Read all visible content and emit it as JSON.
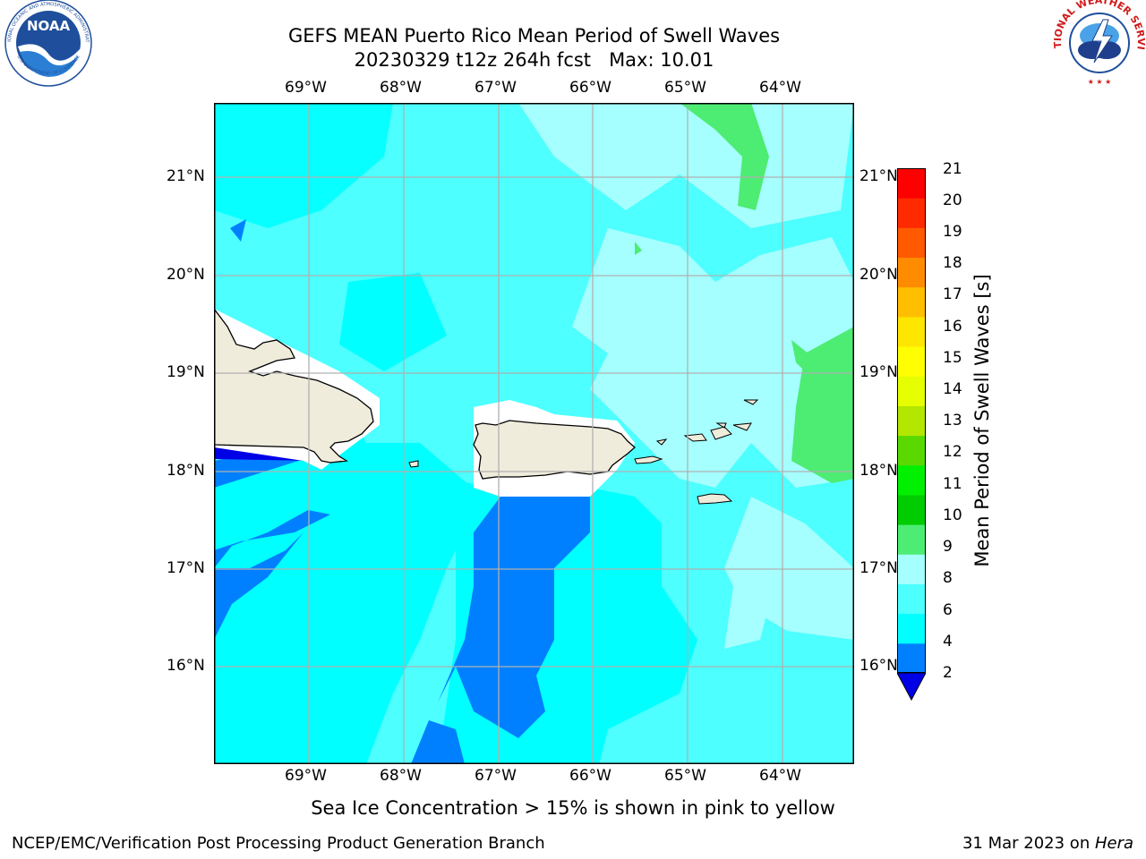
{
  "title": {
    "line1": "GEFS MEAN Puerto Rico Mean Period of Swell Waves",
    "line2": "20230329 t12z 264h fcst   Max: 10.01"
  },
  "logos": {
    "noaa": {
      "text": "NOAA",
      "ring_top": "NATIONAL OCEANIC AND ATMOSPHERIC ADMINISTRATION",
      "ring_bottom": "U.S. DEPARTMENT OF COMMERCE",
      "color": "#1f4f9c"
    },
    "nws": {
      "ring_text": "NATIONAL WEATHER SERVICE",
      "color": "#d01c1c"
    }
  },
  "map": {
    "lon_labels": [
      "69°W",
      "68°W",
      "67°W",
      "66°W",
      "65°W",
      "64°W"
    ],
    "lat_labels": [
      "21°N",
      "20°N",
      "19°N",
      "18°N",
      "17°N",
      "16°N"
    ],
    "land_color": "#efecdc",
    "grid_color": "#b0b0b0"
  },
  "colorbar": {
    "label": "Mean Period of Swell Waves [s]",
    "ticks": [
      "21",
      "20",
      "19",
      "18",
      "17",
      "16",
      "15",
      "14",
      "13",
      "12",
      "11",
      "10",
      "9",
      "8",
      "6",
      "4",
      "2"
    ],
    "colors": [
      "#0000e6",
      "#0080ff",
      "#00ffff",
      "#4dffff",
      "#a6ffff",
      "#4dec73",
      "#00cc00",
      "#00f000",
      "#59d900",
      "#b3e600",
      "#e6ff00",
      "#ffff00",
      "#ffe600",
      "#ffbf00",
      "#ff8c00",
      "#ff5a00",
      "#ff2a00",
      "#ff0000"
    ],
    "extend_color": "#0000e6"
  },
  "note": "Sea Ice Concentration > 15% is shown in pink to yellow",
  "footer": {
    "left": "NCEP/EMC/Verification Post Processing Product Generation Branch",
    "date": "31 Mar 2023 on ",
    "machine": "Hera"
  }
}
